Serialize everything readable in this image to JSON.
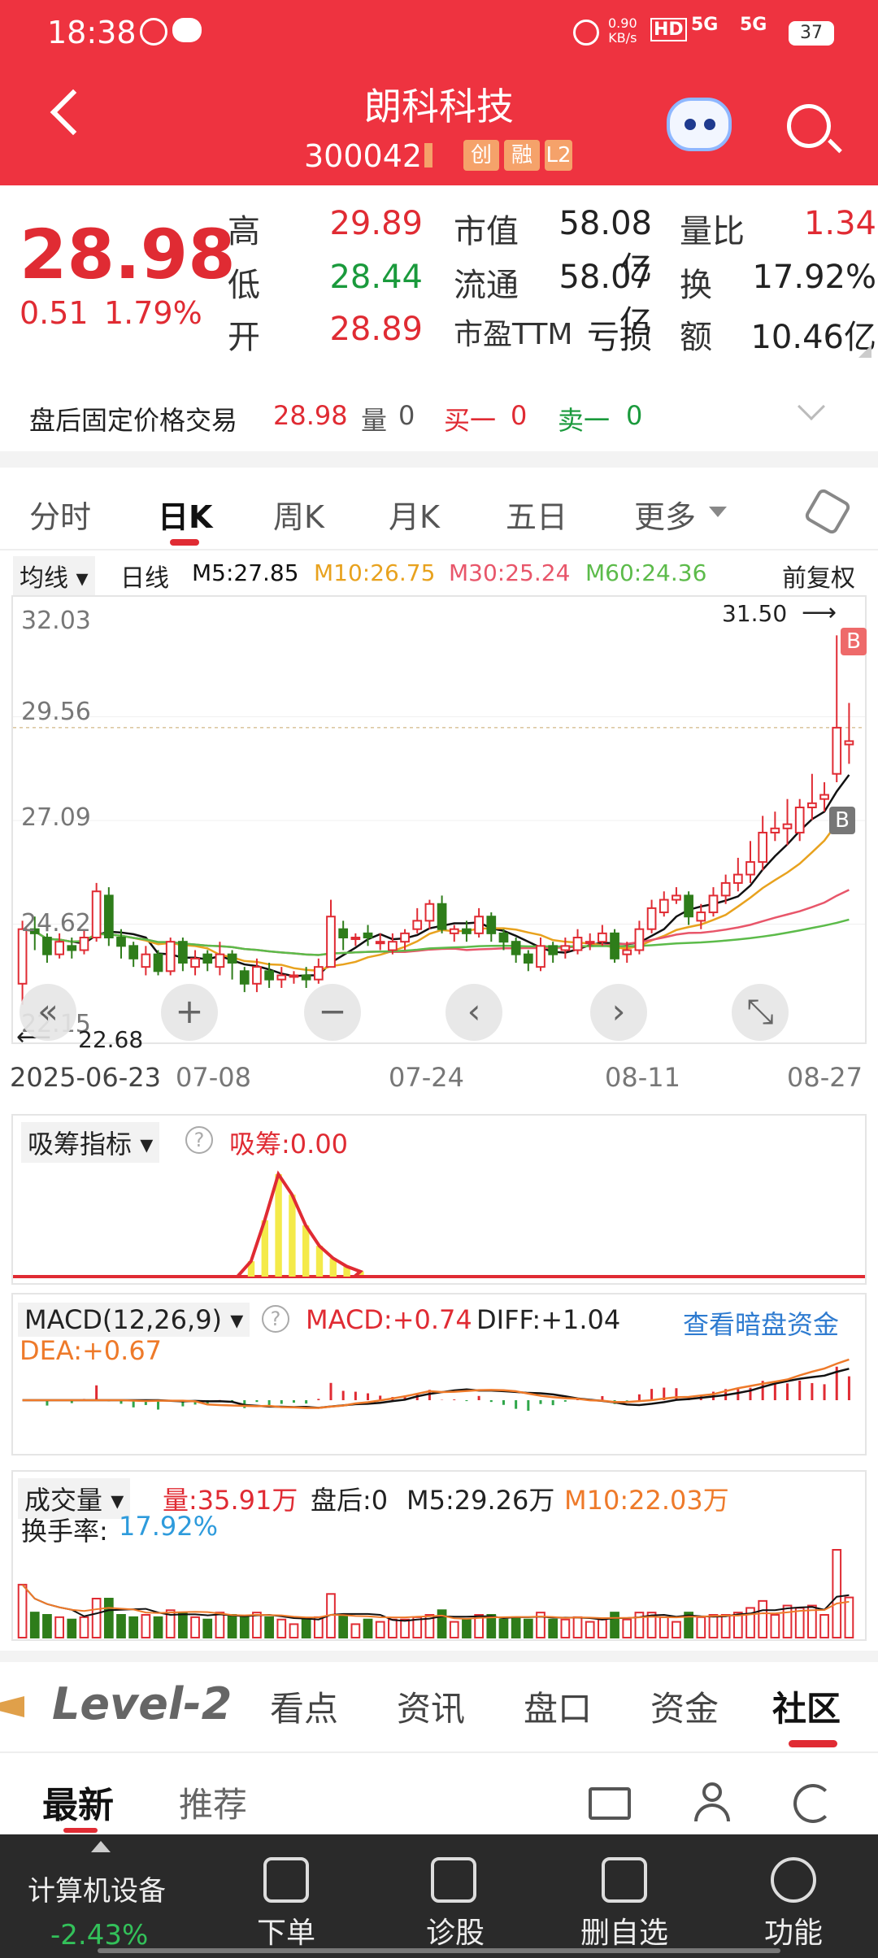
{
  "status": {
    "time": "18:38",
    "net_speed": "0.90",
    "net_unit": "KB/s",
    "hd": "HD",
    "signal1": "5G",
    "signal2": "5G",
    "battery": "37"
  },
  "header": {
    "title": "朗科科技",
    "code": "300042",
    "tags": [
      "创",
      "融",
      "L2"
    ]
  },
  "quote": {
    "price": "28.98",
    "change": "0.51",
    "change_pct": "1.79%",
    "high_label": "高",
    "high": "29.89",
    "low_label": "低",
    "low": "28.44",
    "open_label": "开",
    "open": "28.89",
    "mcap_label": "市值",
    "mcap": "58.08亿",
    "float_label": "流通",
    "float": "58.07亿",
    "pe_label": "市盈TTM",
    "pe": "亏损",
    "vr_label": "量比",
    "vr": "1.34",
    "turn_label": "换",
    "turn": "17.92%",
    "amt_label": "额",
    "amt": "10.46亿"
  },
  "after_hours": {
    "label": "盘后固定价格交易",
    "price": "28.98",
    "vol_label": "量",
    "vol": "0",
    "buy_label": "买一",
    "buy": "0",
    "sell_label": "卖一",
    "sell": "0"
  },
  "tabs": [
    "分时",
    "日K",
    "周K",
    "月K",
    "五日",
    "更多"
  ],
  "ma_legend": {
    "dropdown": "均线",
    "period": "日线",
    "m5": "M5:27.85",
    "m10": "M10:26.75",
    "m30": "M30:25.24",
    "m60": "M60:24.36",
    "adjust": "前复权"
  },
  "colors": {
    "up": "#e02b33",
    "down": "#2e7d1a",
    "m5": "#111111",
    "m10": "#e8a21e",
    "m30": "#e8566a",
    "m60": "#5cbb4a",
    "brand": "#ee3340"
  },
  "kchart": {
    "ymax_label": "32.03",
    "y2_label": "29.56",
    "y3_label": "27.09",
    "y4_label": "24.62",
    "ymin_label": "22.15",
    "high_mark": "31.50",
    "low_mark": "22.68",
    "b_marker": "B"
  },
  "chart_data": {
    "type": "candlestick",
    "ylim": [
      22.15,
      32.03
    ],
    "x_ticks": [
      "2025-06-23",
      "07-08",
      "07-24",
      "08-11",
      "08-27"
    ],
    "candles": [
      [
        23.2,
        24.5,
        24.7,
        22.7
      ],
      [
        24.5,
        24.4,
        24.8,
        24.0
      ],
      [
        24.3,
        23.9,
        24.4,
        23.7
      ],
      [
        23.9,
        24.2,
        24.4,
        23.8
      ],
      [
        24.1,
        24.0,
        24.3,
        23.8
      ],
      [
        24.0,
        24.3,
        24.5,
        23.9
      ],
      [
        24.3,
        25.4,
        25.6,
        24.2
      ],
      [
        25.3,
        24.3,
        25.5,
        24.1
      ],
      [
        24.3,
        24.1,
        24.5,
        23.8
      ],
      [
        24.1,
        23.8,
        24.2,
        23.6
      ],
      [
        23.6,
        23.9,
        24.1,
        23.4
      ],
      [
        23.9,
        23.5,
        24.0,
        23.4
      ],
      [
        23.5,
        24.2,
        24.3,
        23.4
      ],
      [
        24.2,
        23.7,
        24.3,
        23.5
      ],
      [
        23.6,
        23.8,
        24.0,
        23.4
      ],
      [
        23.9,
        23.7,
        24.0,
        23.5
      ],
      [
        23.6,
        23.9,
        24.2,
        23.4
      ],
      [
        23.9,
        23.7,
        24.0,
        23.3
      ],
      [
        23.5,
        23.2,
        23.6,
        23.0
      ],
      [
        23.2,
        23.6,
        23.8,
        23.0
      ],
      [
        23.5,
        23.3,
        23.7,
        23.1
      ],
      [
        23.3,
        23.4,
        23.6,
        23.1
      ],
      [
        23.4,
        23.4,
        23.5,
        23.2
      ],
      [
        23.4,
        23.3,
        23.6,
        23.1
      ],
      [
        23.3,
        23.6,
        23.8,
        23.2
      ],
      [
        23.6,
        24.8,
        25.2,
        23.6
      ],
      [
        24.5,
        24.3,
        24.7,
        24.0
      ],
      [
        24.3,
        24.3,
        24.4,
        24.1
      ],
      [
        24.4,
        24.3,
        24.6,
        24.1
      ],
      [
        24.2,
        24.2,
        24.4,
        24.0
      ],
      [
        24.0,
        24.2,
        24.4,
        23.9
      ],
      [
        24.2,
        24.4,
        24.5,
        24.0
      ],
      [
        24.5,
        24.7,
        25.0,
        24.4
      ],
      [
        24.7,
        25.1,
        25.2,
        24.5
      ],
      [
        25.1,
        24.5,
        25.3,
        24.4
      ],
      [
        24.4,
        24.5,
        24.6,
        24.2
      ],
      [
        24.5,
        24.4,
        24.7,
        24.2
      ],
      [
        24.4,
        24.8,
        25.0,
        24.3
      ],
      [
        24.8,
        24.4,
        24.9,
        24.2
      ],
      [
        24.4,
        24.2,
        24.5,
        24.0
      ],
      [
        24.2,
        23.9,
        24.3,
        23.7
      ],
      [
        23.9,
        23.7,
        24.0,
        23.5
      ],
      [
        23.6,
        24.1,
        24.3,
        23.5
      ],
      [
        24.1,
        23.9,
        24.2,
        23.7
      ],
      [
        24.0,
        24.1,
        24.3,
        23.8
      ],
      [
        24.0,
        24.3,
        24.5,
        23.9
      ],
      [
        24.2,
        24.2,
        24.4,
        24.0
      ],
      [
        24.2,
        24.4,
        24.6,
        24.1
      ],
      [
        24.4,
        23.8,
        24.5,
        23.7
      ],
      [
        23.9,
        24.0,
        24.2,
        23.7
      ],
      [
        24.0,
        24.5,
        24.7,
        23.9
      ],
      [
        24.5,
        25.0,
        25.2,
        24.4
      ],
      [
        24.9,
        25.2,
        25.4,
        24.8
      ],
      [
        25.2,
        25.3,
        25.5,
        25.1
      ],
      [
        25.3,
        24.8,
        25.4,
        24.6
      ],
      [
        24.7,
        24.9,
        25.1,
        24.5
      ],
      [
        24.9,
        25.3,
        25.5,
        24.8
      ],
      [
        25.3,
        25.6,
        25.8,
        25.1
      ],
      [
        25.6,
        25.8,
        26.2,
        25.4
      ],
      [
        25.8,
        26.1,
        26.6,
        25.6
      ],
      [
        26.1,
        26.8,
        27.2,
        25.9
      ],
      [
        26.8,
        26.9,
        27.3,
        26.6
      ],
      [
        26.9,
        27.0,
        27.6,
        26.5
      ],
      [
        26.8,
        27.4,
        27.6,
        26.6
      ],
      [
        27.4,
        27.5,
        28.2,
        27.1
      ],
      [
        27.6,
        27.7,
        28.0,
        27.3
      ],
      [
        28.2,
        29.3,
        31.5,
        28.0
      ],
      [
        28.9,
        28.98,
        29.89,
        28.44
      ]
    ],
    "ma_series": [
      {
        "name": "M5"
      },
      {
        "name": "M10"
      },
      {
        "name": "M30"
      },
      {
        "name": "M60"
      }
    ]
  },
  "ind_xichou": {
    "dropdown": "吸筹指标",
    "value": "吸筹:0.00"
  },
  "ind_macd": {
    "dropdown": "MACD(12,26,9)",
    "macd": "MACD:+0.74",
    "diff": "DIFF:+1.04",
    "dea": "DEA:+0.67",
    "link": "查看暗盘资金"
  },
  "ind_vol": {
    "dropdown": "成交量",
    "vol": "量:35.91万",
    "after": "盘后:0",
    "m5": "M5:29.26万",
    "m10": "M10:22.03万",
    "turn_label": "换手率:",
    "turn": "17.92%"
  },
  "subtabs": [
    "Level-2",
    "看点",
    "资讯",
    "盘口",
    "资金",
    "社区"
  ],
  "feed_tabs": [
    "最新",
    "推荐"
  ],
  "bottom": {
    "sector": "计算机设备",
    "sector_pct": "-2.43%",
    "items": [
      "下单",
      "诊股",
      "删自选",
      "功能"
    ]
  }
}
